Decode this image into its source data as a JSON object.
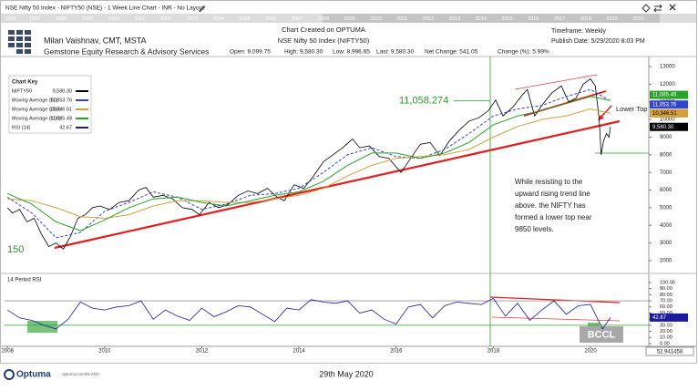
{
  "toolbar": {
    "title": "NSE Nifty 50 Index - NIFTY50 (NSE) - 1 Week Line Chart - INR - No Layout",
    "years": [
      "1995",
      "1997",
      "1998",
      "1999",
      "2000",
      "2001",
      "2002",
      "2003",
      "2004",
      "2005",
      "2006",
      "2007",
      "2008",
      "2009",
      "2010",
      "2011",
      "2012",
      "2013",
      "2014",
      "2015",
      "2016",
      "2017",
      "2018",
      "2019",
      "2020"
    ]
  },
  "header": {
    "author": "Milan Vaishnav, CMT, MSTA",
    "company": "Gemstone Equity Research & Advisory Services",
    "created": "Chart Created on OPTUMA",
    "instrument": "NSE Nifty 50 Index (NIFTY50)",
    "open": "Open: 9,099.75",
    "high": "High: 9,580.30",
    "low": "Low: 8,996.65",
    "last": "Last: 9,580.30",
    "net_change": "Net Change: 541.05",
    "change_pct": "Change (%): 5.99%",
    "timeframe": "Timeframe: Weekly",
    "publish": "Publish Date: 5/29/2020 8:03 PM"
  },
  "chart_key": {
    "title": "Chart Key"
  },
  "chart_data": [
    {
      "type": "line",
      "xlim": [
        2007.94,
        2021.2
      ],
      "ylim": [
        1430,
        13570
      ],
      "yticks": [
        2000,
        3000,
        4000,
        5000,
        6000,
        7000,
        8000,
        9000,
        10000,
        11000,
        12000,
        13000
      ],
      "series": [
        {
          "name": "NIFTY50",
          "color": "#000000",
          "style": "solid",
          "last_label": "9,580.30",
          "x": [
            2008.0,
            2008.1,
            2008.25,
            2008.4,
            2008.55,
            2008.7,
            2008.85,
            2009.0,
            2009.15,
            2009.3,
            2009.45,
            2009.6,
            2009.75,
            2009.9,
            2010.1,
            2010.3,
            2010.5,
            2010.7,
            2010.85,
            2011.0,
            2011.2,
            2011.4,
            2011.6,
            2011.8,
            2011.95,
            2012.15,
            2012.35,
            2012.55,
            2012.75,
            2012.95,
            2013.15,
            2013.35,
            2013.55,
            2013.7,
            2013.9,
            2014.1,
            2014.3,
            2014.5,
            2014.7,
            2014.9,
            2015.1,
            2015.25,
            2015.45,
            2015.65,
            2015.85,
            2016.1,
            2016.3,
            2016.5,
            2016.7,
            2016.9,
            2017.1,
            2017.3,
            2017.5,
            2017.7,
            2017.9,
            2018.05,
            2018.2,
            2018.4,
            2018.6,
            2018.7,
            2018.85,
            2019.0,
            2019.2,
            2019.4,
            2019.55,
            2019.7,
            2019.85,
            2020.0,
            2020.1,
            2020.18,
            2020.22,
            2020.27,
            2020.33,
            2020.38,
            2020.41
          ],
          "values": [
            5000,
            4700,
            4900,
            4200,
            4400,
            3500,
            2800,
            3000,
            2650,
            3400,
            4400,
            4600,
            5000,
            5100,
            4900,
            5300,
            5400,
            6000,
            6150,
            5600,
            5700,
            5500,
            5000,
            4900,
            4600,
            5300,
            5000,
            5200,
            5700,
            5950,
            5800,
            6100,
            5600,
            5400,
            6300,
            6100,
            6800,
            7600,
            8000,
            8400,
            8900,
            8400,
            8500,
            7900,
            7800,
            7000,
            7800,
            8600,
            8700,
            7950,
            8800,
            9400,
            9900,
            10100,
            10500,
            11100,
            10200,
            10700,
            11400,
            11700,
            10200,
            10800,
            11500,
            11900,
            11000,
            11200,
            12000,
            12300,
            11900,
            10000,
            8000,
            8800,
            9200,
            9000,
            9580.3
          ]
        },
        {
          "name": "Moving Average (50)",
          "color": "#3344cc",
          "style": "dashed",
          "last_label": "11,053.76",
          "x": [
            2008.0,
            2008.5,
            2009.0,
            2009.5,
            2010.0,
            2010.5,
            2011.0,
            2011.5,
            2012.0,
            2012.5,
            2013.0,
            2013.5,
            2014.0,
            2014.5,
            2015.0,
            2015.5,
            2016.0,
            2016.5,
            2017.0,
            2017.5,
            2018.0,
            2018.5,
            2019.0,
            2019.5,
            2020.0,
            2020.41
          ],
          "values": [
            5600,
            4700,
            3300,
            3600,
            4800,
            5300,
            5900,
            5600,
            4900,
            5200,
            5700,
            5800,
            6100,
            7000,
            8000,
            8400,
            7900,
            7800,
            8300,
            9200,
            10200,
            10600,
            10800,
            11300,
            11700,
            11053.76
          ]
        },
        {
          "name": "Moving Average (200)",
          "color": "#d4a03c",
          "style": "solid",
          "last_label": "10,346.51",
          "x": [
            2008.0,
            2008.5,
            2009.0,
            2009.5,
            2010.0,
            2010.5,
            2011.0,
            2011.5,
            2012.0,
            2012.5,
            2013.0,
            2013.5,
            2014.0,
            2014.5,
            2015.0,
            2015.5,
            2016.0,
            2016.5,
            2017.0,
            2017.5,
            2018.0,
            2018.5,
            2019.0,
            2019.5,
            2020.0,
            2020.41
          ],
          "values": [
            5500,
            5400,
            5000,
            4500,
            4400,
            4600,
            5100,
            5400,
            5400,
            5300,
            5300,
            5500,
            5700,
            6100,
            6800,
            7400,
            7800,
            7900,
            8000,
            8300,
            9000,
            9600,
            10000,
            10200,
            10600,
            10346.51
          ]
        },
        {
          "name": "Moving Average (100)",
          "color": "#2aa02a",
          "style": "solid",
          "last_label": "11,085.49",
          "x": [
            2008.0,
            2008.5,
            2009.0,
            2009.5,
            2010.0,
            2010.5,
            2011.0,
            2011.5,
            2012.0,
            2012.5,
            2013.0,
            2013.5,
            2014.0,
            2014.5,
            2015.0,
            2015.5,
            2016.0,
            2016.5,
            2017.0,
            2017.5,
            2018.0,
            2018.5,
            2019.0,
            2019.5,
            2020.0,
            2020.41
          ],
          "values": [
            5800,
            5200,
            4200,
            3700,
            4300,
            5000,
            5500,
            5600,
            5300,
            5100,
            5400,
            5700,
            5900,
            6500,
            7400,
            8100,
            8100,
            7800,
            8100,
            8700,
            9700,
            10200,
            10500,
            10900,
            11300,
            11085.49
          ]
        }
      ]
    },
    {
      "type": "line",
      "title": "14 Period RSI",
      "xlim": [
        2007.94,
        2021.2
      ],
      "ylim": [
        -4.5,
        110.4
      ],
      "xticks": [
        2008,
        2010,
        2012,
        2014,
        2016,
        2018,
        2020
      ],
      "yticks": [
        {
          "value": 100,
          "label": "100.00"
        },
        {
          "value": 90,
          "label": "90.00"
        },
        {
          "value": 80,
          "label": "80.00"
        },
        {
          "value": 70,
          "label": "70.00"
        },
        {
          "value": 60,
          "label": "60.00"
        },
        {
          "value": 50,
          "label": "50.00"
        },
        {
          "value": 40,
          "label": "40.00"
        },
        {
          "value": 30,
          "label": "30.00"
        },
        {
          "value": 20,
          "label": "20.00"
        },
        {
          "value": 10,
          "label": "10.00"
        },
        {
          "value": 0,
          "label": "0.00"
        }
      ],
      "levels": [
        70,
        30
      ],
      "series": [
        {
          "name": "RSI (14)",
          "color": "#1a1a9a",
          "style": "solid",
          "last_label": "42.67",
          "x": [
            2008.0,
            2008.25,
            2008.5,
            2008.75,
            2009.0,
            2009.25,
            2009.5,
            2009.75,
            2010.0,
            2010.25,
            2010.5,
            2010.75,
            2011.0,
            2011.25,
            2011.5,
            2011.75,
            2012.0,
            2012.25,
            2012.5,
            2012.75,
            2013.0,
            2013.25,
            2013.5,
            2013.75,
            2014.0,
            2014.25,
            2014.5,
            2014.75,
            2015.0,
            2015.25,
            2015.5,
            2015.75,
            2016.0,
            2016.25,
            2016.5,
            2016.75,
            2017.0,
            2017.25,
            2017.5,
            2017.75,
            2018.0,
            2018.25,
            2018.5,
            2018.75,
            2019.0,
            2019.25,
            2019.5,
            2019.75,
            2020.0,
            2020.25,
            2020.41
          ],
          "values": [
            55,
            42,
            38,
            30,
            24,
            40,
            68,
            58,
            55,
            60,
            62,
            70,
            40,
            55,
            45,
            38,
            58,
            44,
            52,
            62,
            60,
            48,
            36,
            58,
            55,
            72,
            68,
            66,
            70,
            50,
            55,
            40,
            32,
            60,
            64,
            42,
            62,
            68,
            66,
            64,
            74,
            45,
            66,
            38,
            55,
            70,
            48,
            62,
            64,
            24,
            42.67
          ]
        }
      ]
    }
  ],
  "annotations": {
    "level": {
      "value": 11058.274,
      "label": "11,058.274"
    },
    "fib": "150",
    "lower_top": "Lower Top",
    "note": [
      "While resisting to the",
      "upward rising trend line",
      "above. the NIFTY has",
      "formed a lower top near",
      "9850 levels."
    ],
    "watermark": "BCCL",
    "cursor": "52.941458"
  },
  "footer": {
    "brand": "Optuma",
    "url": "optuma.com/RLANV",
    "date": "29th May 2020"
  }
}
